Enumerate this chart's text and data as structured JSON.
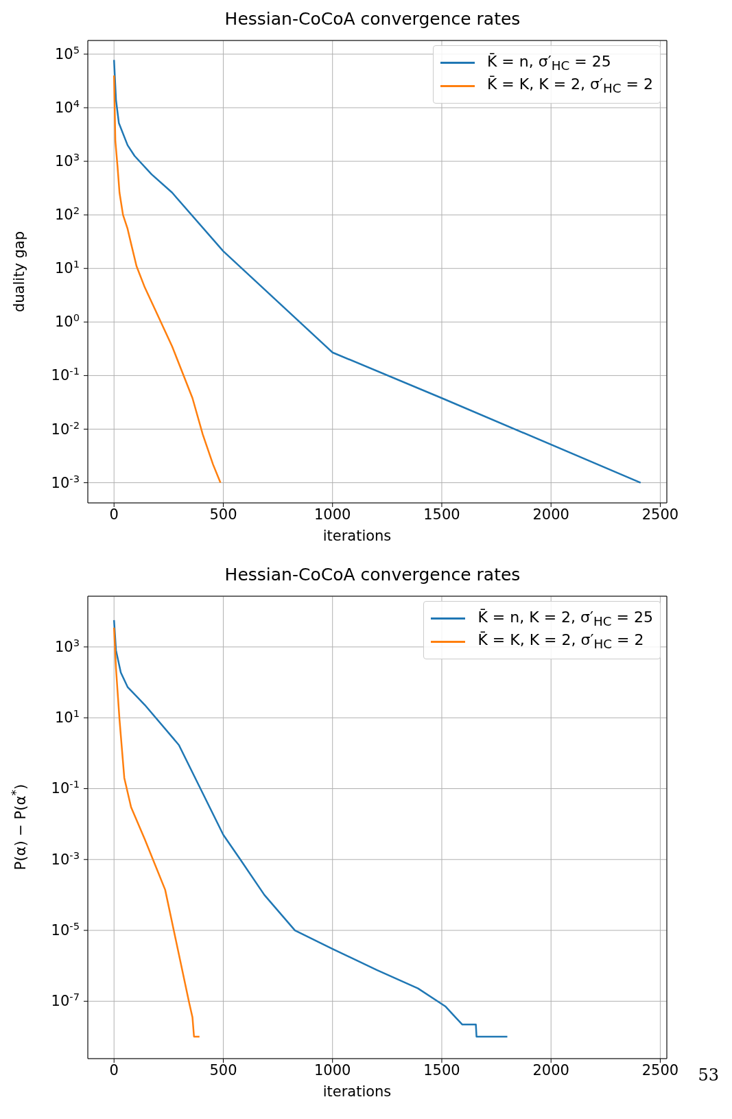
{
  "chart_data": [
    {
      "type": "line",
      "title": "Hessian-CoCoA convergence rates",
      "xlabel": "iterations",
      "ylabel": "duality gap",
      "log": "y",
      "grid": true,
      "legend": "top right",
      "marker": "none",
      "line_style": "solid",
      "xlim": [
        -120,
        2530
      ],
      "xticks": [
        0,
        500,
        1000,
        1500,
        2000,
        2500
      ],
      "ylim": [
        0.00042,
        180000
      ],
      "yticks": [
        {
          "value": 0.001,
          "label": "10$^{-3}$"
        },
        {
          "value": 0.01,
          "label": "10$^{-2}$"
        },
        {
          "value": 0.1,
          "label": "10$^{-1}$"
        },
        {
          "value": 1,
          "label": "10$^{0}$"
        },
        {
          "value": 10,
          "label": "10$^{1}$"
        },
        {
          "value": 100,
          "label": "10$^{2}$"
        },
        {
          "value": 1000,
          "label": "10$^{3}$"
        },
        {
          "value": 10000,
          "label": "10$^{4}$"
        },
        {
          "value": 100000,
          "label": "10$^{5}$"
        }
      ],
      "series": [
        {
          "name": "K̄ = n, σ′$_{HC}$ = 25",
          "color": "#1f77b4",
          "x": [
            0,
            9,
            22,
            62,
            94,
            172,
            266,
            500,
            1000,
            1500,
            2410
          ],
          "values": [
            78000,
            14000,
            5200,
            2000,
            1260,
            570,
            260,
            21,
            0.27,
            0.038,
            0.001
          ]
        },
        {
          "name": "K̄ = K, K = 2, σ′$_{HC}$ = 2",
          "color": "#ff7f0e",
          "x": [
            0,
            6,
            16,
            25,
            41,
            62,
            78,
            103,
            141,
            188,
            266,
            359,
            406,
            453,
            487
          ],
          "values": [
            40000,
            2400,
            800,
            260,
            100,
            55,
            29,
            11,
            4.4,
            1.7,
            0.35,
            0.038,
            0.008,
            0.0022,
            0.001
          ]
        }
      ]
    },
    {
      "type": "line",
      "title": "Hessian-CoCoA convergence rates",
      "xlabel": "iterations",
      "ylabel": "P(α) − P(α$^{*}$)",
      "log": "y",
      "grid": true,
      "legend": "top right",
      "marker": "none",
      "line_style": "solid",
      "annotations": [
        "53"
      ],
      "xlim": [
        -120,
        2530
      ],
      "xticks": [
        0,
        500,
        1000,
        1500,
        2000,
        2500
      ],
      "ylim": [
        2.4e-09,
        27000
      ],
      "yticks": [
        {
          "value": 1e-07,
          "label": "10$^{-7}$"
        },
        {
          "value": 1e-05,
          "label": "10$^{-5}$"
        },
        {
          "value": 0.001,
          "label": "10$^{-3}$"
        },
        {
          "value": 0.1,
          "label": "10$^{-1}$"
        },
        {
          "value": 10,
          "label": "10$^{1}$"
        },
        {
          "value": 1000,
          "label": "10$^{3}$"
        }
      ],
      "series": [
        {
          "name": "K̄ = n, K = 2, σ′$_{HC}$ = 25",
          "color": "#1f77b4",
          "x": [
            0,
            9,
            31,
            62,
            141,
            297,
            500,
            578,
            688,
            828,
            1000,
            1203,
            1391,
            1516,
            1563,
            1594,
            1656,
            1659,
            1800
          ],
          "values": [
            5700,
            800,
            190,
            74,
            23,
            1.7,
            0.005,
            0.001,
            0.0001,
            1e-05,
            3e-06,
            7.6e-07,
            2.3e-07,
            7.2e-08,
            3.5e-08,
            2.2e-08,
            2.2e-08,
            1e-08,
            1e-08
          ]
        },
        {
          "name": "K̄ = K, K = 2, σ′$_{HC}$ = 2",
          "color": "#ff7f0e",
          "x": [
            0,
            9,
            25,
            47,
            78,
            141,
            234,
            344,
            359,
            366,
            391
          ],
          "values": [
            3500,
            245,
            9,
            0.2,
            0.03,
            0.0037,
            0.00014,
            9e-08,
            3.5e-08,
            1e-08,
            1e-08
          ]
        }
      ]
    }
  ]
}
